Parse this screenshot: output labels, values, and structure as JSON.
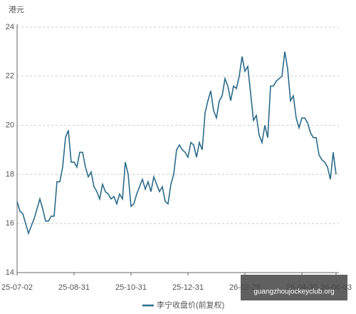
{
  "chart_data": {
    "type": "line",
    "y_unit": "港元",
    "categories": [
      "25-07-02",
      null,
      null,
      null,
      null,
      null,
      null,
      null,
      null,
      null,
      null,
      null,
      null,
      null,
      null,
      null,
      null,
      null,
      null,
      null,
      "25-08-31",
      null,
      null,
      null,
      null,
      null,
      null,
      null,
      null,
      null,
      null,
      null,
      null,
      null,
      null,
      null,
      null,
      null,
      null,
      null,
      "25-10-31",
      null,
      null,
      null,
      null,
      null,
      null,
      null,
      null,
      null,
      null,
      null,
      null,
      null,
      null,
      null,
      null,
      null,
      null,
      null,
      "25-12-31",
      null,
      null,
      null,
      null,
      null,
      null,
      null,
      null,
      null,
      null,
      null,
      null,
      null,
      null,
      null,
      null,
      null,
      null,
      null,
      "26-02-28",
      null,
      null,
      null,
      null,
      null,
      null,
      null,
      null,
      null,
      null,
      null,
      null,
      null,
      null,
      null,
      null,
      null,
      null,
      null,
      "26-04-30",
      null,
      null,
      null,
      null,
      null,
      null,
      null,
      null,
      null,
      null,
      null,
      "26-06-03"
    ],
    "series": [
      {
        "name": "李宁收盘价(前复权)",
        "color": "#2b6b8a",
        "values": [
          16.9,
          16.5,
          16.4,
          16.0,
          15.6,
          15.9,
          16.2,
          16.6,
          17.0,
          16.6,
          16.1,
          16.1,
          16.3,
          16.3,
          17.7,
          17.7,
          18.3,
          19.5,
          19.8,
          18.5,
          18.5,
          18.3,
          18.9,
          18.9,
          18.3,
          17.9,
          18.1,
          17.5,
          17.3,
          17.0,
          17.6,
          17.3,
          17.2,
          17.0,
          17.1,
          16.8,
          17.2,
          17.0,
          18.5,
          18.0,
          16.7,
          16.8,
          17.2,
          17.5,
          17.8,
          17.4,
          17.7,
          17.3,
          17.9,
          17.6,
          17.3,
          17.5,
          16.9,
          16.8,
          17.6,
          18.0,
          19.0,
          19.2,
          19.0,
          18.9,
          18.7,
          19.3,
          19.2,
          18.7,
          19.3,
          19.0,
          20.5,
          21.0,
          21.4,
          20.6,
          20.3,
          21.0,
          21.2,
          21.9,
          21.6,
          21.0,
          21.6,
          21.5,
          22.0,
          22.8,
          22.2,
          22.4,
          21.3,
          20.2,
          20.4,
          19.6,
          19.3,
          20.0,
          19.5,
          21.6,
          21.6,
          21.8,
          21.9,
          22.0,
          23.0,
          22.3,
          21.0,
          21.2,
          20.3,
          19.9,
          20.3,
          20.3,
          20.1,
          19.7,
          19.5,
          19.5,
          18.8,
          18.6,
          18.5,
          18.3,
          17.8,
          18.9,
          18.0
        ]
      }
    ],
    "ylim": [
      14,
      24
    ],
    "yticks": [
      14,
      16,
      18,
      20,
      22,
      24
    ],
    "grid": true,
    "watermark": "guangzhoujockeyclub.org"
  }
}
